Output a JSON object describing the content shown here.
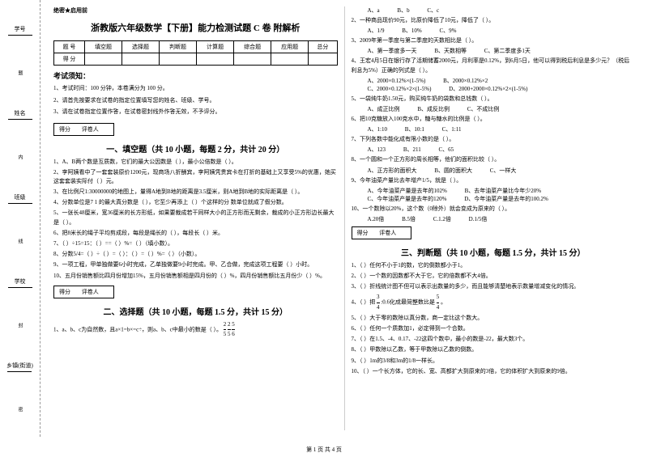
{
  "binding": {
    "fields": [
      "学号",
      "姓名",
      "班级",
      "学校",
      "乡镇(街道)"
    ],
    "marks": [
      "题",
      "内",
      "线",
      "封",
      "密"
    ]
  },
  "header": {
    "secret": "绝密★启用前",
    "title": "浙教版六年级数学【下册】能力检测试题 C 卷 附解析"
  },
  "score_table": {
    "row1": [
      "题 号",
      "填空题",
      "选择题",
      "判断题",
      "计算题",
      "综合题",
      "应用题",
      "总分"
    ],
    "row2_label": "得 分"
  },
  "notice": {
    "title": "考试须知：",
    "items": [
      "1、考试时间：100 分钟，本卷满分为 100 分。",
      "2、请首先按要求在试卷的指定位置填写您的姓名、班级、学号。",
      "3、请在试卷指定位置作答，在试卷密封线外作答无效，不予评分。"
    ]
  },
  "score_box": {
    "left": "得分",
    "right": "评卷人"
  },
  "sections": {
    "s1": {
      "title": "一、填空题（共 10 小题，每题 2 分，共计 20 分）",
      "questions": [
        "1、A、B两个数是互质数，它们的最大公因数是（     ），最小公倍数是（     ）。",
        "2、李阿姨看中了一套套装原价1200元，现商场八折酬宾，李阿姨凭贵宾卡在打折的基础上又享受5%的优惠，她买这套套装实际付（     ）元。",
        "3、在比例尺1:30000000的地图上，量得A地到B地的距离是3.5厘米，则A地到B地的实际距离是（     ）。",
        "4、分数单位是7 1 的最大真分数是（     ），它至少再添上（     ）个这样的分 数单位就成了假分数。",
        "5、一张长48厘米，宽36厘米的长方形纸，如果要裁成若干同样大小的正方形而无剩余，裁成的小正方形边长最大是（     ）。",
        "6、把8米长的绳子平均剪成段，每段是绳长的（     ），每段长（     ）米。",
        "7、（     ）÷15=15：（     ）==（     ）%=（     ）（填小数）。",
        "8、分数5/4=（     ）÷（     ）=（     ）：（     ）=（     ）%=（     ）（小数）。",
        "9、一项工程，甲单独做要6小时完成，乙单独做要9小时完成。甲、乙合做，完成这项工程要（     ）小时。",
        "10、五月份销售额比四月份增加15%，五月份销售额相是四月份的（     ）%，四月份销售额比五月份少（     ）%。"
      ]
    },
    "s2": {
      "title": "二、选择题（共 10 小题，每题 1.5 分，共计 15 分）",
      "q1": "1、a、b、c为自然数，且a×1=b×=c÷，则a、b、c中最小的数是（     ）。",
      "q1_fracs": [
        "2/5",
        "2/5",
        "5/6"
      ],
      "right_col": [
        {
          "opts": [
            "A、a",
            "B、b",
            "C、c"
          ]
        },
        {
          "text": "2、一种商品现价90元，比原价降低了10元，降低了（     ）。",
          "opts": [
            "A、1/9",
            "B、10%",
            "C、9%"
          ]
        },
        {
          "text": "3、2009年第一季度与第二季度的天数相比是（     ）。",
          "opts": [
            "A、第一季度多一天",
            "B、天数相等",
            "C、第二季度多1天"
          ]
        },
        {
          "text": "4、王宏4月5日在银行存了活期储蓄2000元，月利率是0.12%，到6月5日，他可以得到税后利息是多少元？（税后利息为5%）正确的列式是（     ）。",
          "opts_multi": [
            "A、2000×0.12%×(1-5%)",
            "B、2000×0.12%×2",
            "C、2000×0.12%×2×(1-5%)",
            "D、2000+2000×0.12%×2×(1-5%)"
          ]
        },
        {
          "text": "5、一袋纯牛奶1.50元，购买纯牛奶的袋数和总钱数（     ）。",
          "opts": [
            "A、成正比例",
            "B、成反比例",
            "C、不成比例"
          ]
        },
        {
          "text": "6、把10克糖放入100克水中，糖与糖水的比例是（     ）。",
          "opts": [
            "A、1:10",
            "B、10:1",
            "C、1:11"
          ]
        },
        {
          "text": "7、下列各数中能化成有限小数的是（     ）。",
          "opts": [
            "A、123",
            "B、211",
            "C、65"
          ]
        },
        {
          "text": "8、一个圆和一个正方形的周长相等，他们的面积比较（     ）。",
          "opts": [
            "A、正方形的面积大",
            "B、圆的面积大",
            "C、一样大"
          ]
        },
        {
          "text": "9、今年油菜产量比去年增产1/5，就是（     ）。",
          "opts_multi": [
            "A、今年油菜产量是去年的102%",
            "B、去年油菜产量比今年少20%",
            "C、今年油菜产量是去年的120%",
            "D、今年油菜产量是去年的100.2%"
          ]
        },
        {
          "text": "10、一个数除以20%，这个数（0除外）就会变成为原来的（     ）。",
          "opts": [
            "A.20倍",
            "B.5倍",
            "C.1.2倍",
            "D.1/5倍"
          ]
        }
      ]
    },
    "s3": {
      "title": "三、判断题（共 10 小题，每题 1.5 分，共计 15 分）",
      "questions": [
        "1、（     ）任何不小于1的数，它的倒数都小于1。",
        "2、（     ）一个数的因数都不大于它，它的倍数都不大4倍。",
        "3、（     ）折线统计图不但可以表示出数量的多少，而且能够清楚地表示数量增减变化的情况。"
      ],
      "q4": {
        "pre": "4、（     ）把",
        "f1": "3/4",
        "mid": ":0.6化成最简整数比是",
        "f2": "5/4",
        "post": "。"
      },
      "rest": [
        "5、（     ）大于零的数除以真分数，商一定比这个数大。",
        "6、（     ）任何一个质数加1，必定得到一个合数。",
        "7、（     ）在1.5、-4、0.17、-22这四个数中，最小的数是-22，最大数3个。",
        "8、（     ）甲数除以乙数，等于甲数除以乙数的倒数。",
        "9、（     ）1m的3/8和3m的1/8一样长。",
        "10、（     ）一个长方体，它的长、宽、高都扩大到原来的3倍，它的体积扩大到原来的9倍。"
      ]
    }
  },
  "footer": "第 1 页 共 4 页"
}
